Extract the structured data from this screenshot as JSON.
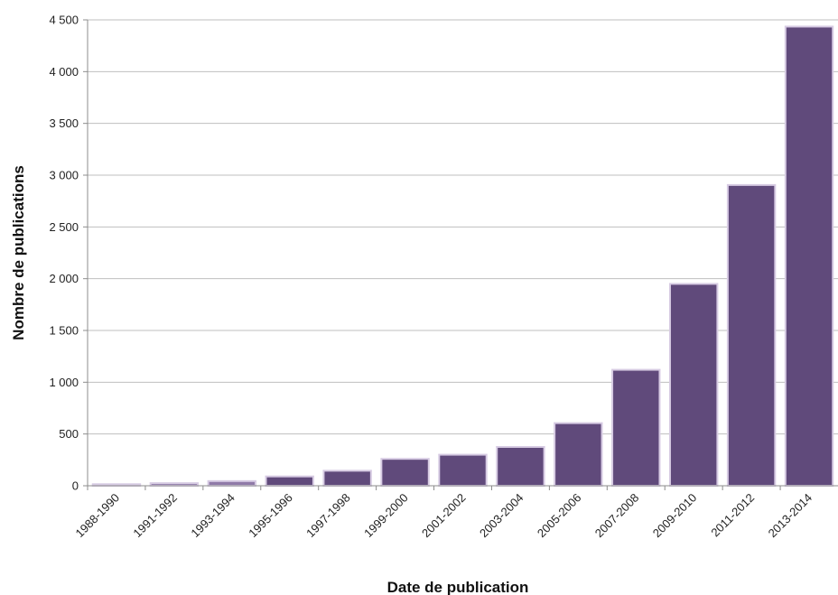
{
  "chart_data": {
    "type": "bar",
    "title": "",
    "xlabel": "Date de publication",
    "ylabel": "Nombre de publications",
    "ylim": [
      0,
      4500
    ],
    "yticks": [
      0,
      500,
      1000,
      1500,
      2000,
      2500,
      3000,
      3500,
      4000,
      4500
    ],
    "ytick_labels": [
      "0",
      "500",
      "1 000",
      "1 500",
      "2 000",
      "2 500",
      "3 000",
      "3 500",
      "4 000",
      "4 500"
    ],
    "grid": true,
    "legend": "none",
    "categories": [
      "1988-1990",
      "1991-1992",
      "1993-1994",
      "1995-1996",
      "1997-1998",
      "1999-2000",
      "2001-2002",
      "2003-2004",
      "2005-2006",
      "2007-2008",
      "2009-2010",
      "2011-2012",
      "2013-2014"
    ],
    "values": [
      15,
      25,
      45,
      90,
      145,
      260,
      300,
      375,
      605,
      1120,
      1950,
      2905,
      4435
    ],
    "colors": {
      "bar_fill_dark": "#604a7b",
      "bar_fill_light": "#8f7aa8",
      "bar_stroke": "#d7cbe3"
    }
  }
}
